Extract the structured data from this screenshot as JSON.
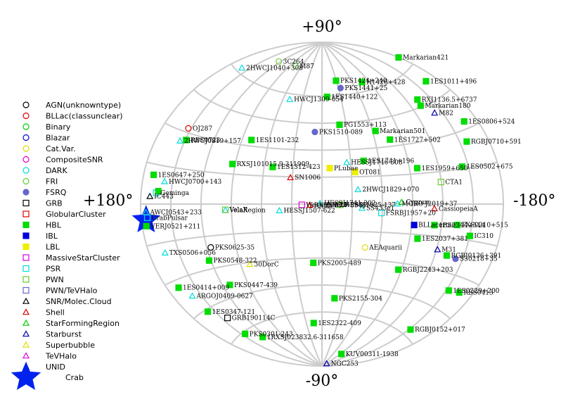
{
  "chart_data": {
    "type": "scatter",
    "projection": "aitoff-galactic",
    "axis_labels": {
      "top": "+90°",
      "bottom": "-90°",
      "left": "+180°",
      "right": "-180°"
    },
    "grid": true,
    "legend_position": "left",
    "classes": [
      {
        "name": "AGN(unknowntype)",
        "marker": "circle-open",
        "color": "#000000"
      },
      {
        "name": "BLLac(classunclear)",
        "marker": "circle-open",
        "color": "#dd0000"
      },
      {
        "name": "Binary",
        "marker": "circle-open",
        "color": "#00cc00"
      },
      {
        "name": "Blazar",
        "marker": "circle-open",
        "color": "#0000dd"
      },
      {
        "name": "Cat.Var.",
        "marker": "circle-open",
        "color": "#dddd00"
      },
      {
        "name": "CompositeSNR",
        "marker": "circle-open",
        "color": "#dd00dd"
      },
      {
        "name": "DARK",
        "marker": "circle-open",
        "color": "#00dddd"
      },
      {
        "name": "FRI",
        "marker": "circle-open",
        "color": "#66cc33"
      },
      {
        "name": "FSRQ",
        "marker": "circle-filled",
        "color": "#6666cc"
      },
      {
        "name": "GRB",
        "marker": "square-open",
        "color": "#000000"
      },
      {
        "name": "GlobularCluster",
        "marker": "square-open",
        "color": "#dd0000"
      },
      {
        "name": "HBL",
        "marker": "square-filled",
        "color": "#00dd00"
      },
      {
        "name": "IBL",
        "marker": "square-filled",
        "color": "#0000dd"
      },
      {
        "name": "LBL",
        "marker": "square-filled",
        "color": "#eeee00"
      },
      {
        "name": "MassiveStarCluster",
        "marker": "square-open",
        "color": "#dd00dd"
      },
      {
        "name": "PSR",
        "marker": "square-open",
        "color": "#00dddd"
      },
      {
        "name": "PWN",
        "marker": "square-open",
        "color": "#66cc33"
      },
      {
        "name": "PWN/TeVHalo",
        "marker": "square-open",
        "color": "#6666cc"
      },
      {
        "name": "SNR/Molec.Cloud",
        "marker": "triangle-open",
        "color": "#000000"
      },
      {
        "name": "Shell",
        "marker": "triangle-open",
        "color": "#dd0000"
      },
      {
        "name": "StarFormingRegion",
        "marker": "triangle-open",
        "color": "#00cc00"
      },
      {
        "name": "Starburst",
        "marker": "triangle-open",
        "color": "#0000aa"
      },
      {
        "name": "Superbubble",
        "marker": "triangle-open",
        "color": "#dddd00"
      },
      {
        "name": "TeVHalo",
        "marker": "triangle-open",
        "color": "#dd00dd"
      },
      {
        "name": "UNID",
        "marker": "triangle-open",
        "color": "#00dddd"
      },
      {
        "name": "Crab",
        "marker": "star",
        "color": "#0022ee"
      }
    ],
    "sources": [
      {
        "label": "Markarian421",
        "class": "HBL",
        "l": 179.8,
        "b": 65.0
      },
      {
        "label": "1ES1011+496",
        "class": "HBL",
        "l": 165.5,
        "b": 52.7
      },
      {
        "label": "H1426+428",
        "class": "HBL",
        "l": 77.5,
        "b": 64.9
      },
      {
        "label": "PKS1424+240",
        "class": "HBL",
        "l": 29.5,
        "b": 68.2
      },
      {
        "label": "PKS1441+25",
        "class": "FSRQ",
        "l": 34.0,
        "b": 64.0
      },
      {
        "label": "1ES1440+122",
        "class": "HBL",
        "l": 8.3,
        "b": 59.6
      },
      {
        "label": "HWCJ1309-054",
        "class": "UNID",
        "l": -50.0,
        "b": 57.0
      },
      {
        "label": "M87",
        "class": "FRI",
        "l": -76.3,
        "b": 74.5
      },
      {
        "label": "3C264",
        "class": "FRI",
        "l": -124.0,
        "b": 73.0
      },
      {
        "label": "2HWCJ1040+308",
        "class": "UNID",
        "l": -161.0,
        "b": 62.0
      },
      {
        "label": "RXJ1136.5+6737",
        "class": "HBL",
        "l": 134.0,
        "b": 48.5
      },
      {
        "label": "Markarian180",
        "class": "HBL",
        "l": 131.9,
        "b": 45.6
      },
      {
        "label": "1ES0806+524",
        "class": "HBL",
        "l": 166.2,
        "b": 32.9
      },
      {
        "label": "M82",
        "class": "Starburst",
        "l": 141.4,
        "b": 40.6
      },
      {
        "label": "PG1553+113",
        "class": "HBL",
        "l": 21.9,
        "b": 43.9
      },
      {
        "label": "Markarian501",
        "class": "HBL",
        "l": 63.6,
        "b": 38.9
      },
      {
        "label": "1ES1727+502",
        "class": "HBL",
        "l": 77.0,
        "b": 33.5
      },
      {
        "label": "PKS1510-089",
        "class": "FSRQ",
        "l": -8.5,
        "b": 40.1
      },
      {
        "label": "1ES1101-232",
        "class": "HBL",
        "l": -79.6,
        "b": 33.1
      },
      {
        "label": "OJ287",
        "class": "BLLac(classunclear)",
        "l": -153.0,
        "b": 31.7
      },
      {
        "label": "RBS0723",
        "class": "HBL",
        "l": -149.0,
        "b": 27.0
      },
      {
        "label": "2HWCJ0819+157",
        "class": "UNID",
        "l": -155.0,
        "b": 26.0
      },
      {
        "label": "RGBJ0710+591",
        "class": "HBL",
        "l": 157.4,
        "b": 25.4
      },
      {
        "label": "1ES0502+675",
        "class": "HBL",
        "l": 143.8,
        "b": 15.9
      },
      {
        "label": "1ES1959+650",
        "class": "HBL",
        "l": 98.0,
        "b": 17.7
      },
      {
        "label": "HESSJ1746-308",
        "class": "UNID",
        "l": 26.0,
        "b": 23.0
      },
      {
        "label": "1ES1741+196",
        "class": "HBL",
        "l": 43.8,
        "b": 23.5
      },
      {
        "label": "IC310",
        "class": "HBL",
        "l": 150.2,
        "b": -13.1
      },
      {
        "label": "OT081",
        "class": "LBL",
        "l": 34.0,
        "b": 17.6
      },
      {
        "label": "PLubae",
        "class": "LBL",
        "l": 8.0,
        "b": 20.0
      },
      {
        "label": "1ES1312-423",
        "class": "HBL",
        "l": -51.0,
        "b": 20.0
      },
      {
        "label": "RXSJ101015.9-311909",
        "class": "HBL",
        "l": -93.0,
        "b": 20.0
      },
      {
        "label": "PKS0447-439",
        "class": "HBL",
        "l": -111.5,
        "b": -39.1
      },
      {
        "label": "1ES0647+250",
        "class": "HBL",
        "l": -170.0,
        "b": 11.0
      },
      {
        "label": "HWCJ0700+143",
        "class": "UNID",
        "l": -158.0,
        "b": 9.0
      },
      {
        "label": "CTA1",
        "class": "PWN",
        "l": 119.6,
        "b": 10.2
      },
      {
        "label": "2HWCJ1829+070",
        "class": "UNID",
        "l": 36.0,
        "b": 8.0
      },
      {
        "label": "CassiopeiaA",
        "class": "Shell",
        "l": 111.7,
        "b": -2.1
      },
      {
        "label": "FSRBJ1957+20",
        "class": "PSR",
        "l": 59.2,
        "b": -4.7
      },
      {
        "label": "SS433e1",
        "class": "UNID",
        "l": 39.7,
        "b": -2.2
      },
      {
        "label": "HESSJ1507-622",
        "class": "UNID",
        "l": -42.3,
        "b": -3.5
      },
      {
        "label": "VelaRegion",
        "class": "UNID",
        "l": -96.0,
        "b": -3.0
      },
      {
        "label": "1ES2344+514",
        "class": "HBL",
        "l": 112.9,
        "b": -9.9
      },
      {
        "label": "BLLacertae",
        "class": "IBL",
        "l": 92.6,
        "b": -10.4
      },
      {
        "label": "TXS0210+515",
        "class": "HBL",
        "l": 135.8,
        "b": -9.1
      },
      {
        "label": "1ES2037+381",
        "class": "HBL",
        "l": 98.0,
        "b": -17.0
      },
      {
        "label": "AEAquarii",
        "class": "Cat.Var.",
        "l": 45.3,
        "b": -23.5
      },
      {
        "label": "RGBJ0136+391",
        "class": "HBL",
        "l": 132.4,
        "b": -22.9
      },
      {
        "label": "S30218+35",
        "class": "FSRQ",
        "l": 142.6,
        "b": -23.5
      },
      {
        "label": "RBS0413",
        "class": "HBL",
        "l": 165.2,
        "b": -35.6
      },
      {
        "label": "1ES0229+200",
        "class": "HBL",
        "l": 152.9,
        "b": -36.6
      },
      {
        "label": "RGBJ2243+203",
        "class": "HBL",
        "l": 86.6,
        "b": -33.4
      },
      {
        "label": "PKS2005-489",
        "class": "HBL",
        "l": 350.4,
        "b": -32.6
      },
      {
        "label": "PKS2155-304",
        "class": "HBL",
        "l": 17.7,
        "b": -52.2
      },
      {
        "label": "PKS0625-35",
        "class": "AGN(unknowntype)",
        "l": -116.0,
        "b": -20.3
      },
      {
        "label": "TXS0506+056",
        "class": "UNID",
        "l": -164.0,
        "b": -19.0
      },
      {
        "label": "PKS0548-322",
        "class": "HBL",
        "l": -122.0,
        "b": -26.1
      },
      {
        "label": "1ES0414+009",
        "class": "HBL",
        "l": -168.0,
        "b": -33.0
      },
      {
        "label": "ARGOJ0409-0627",
        "class": "UNID",
        "l": -160.0,
        "b": -38.0
      },
      {
        "label": "1ES0347-121",
        "class": "HBL",
        "l": -158.0,
        "b": -46.0
      },
      {
        "label": "GRB190114C",
        "class": "GRB",
        "l": -143.0,
        "b": -52.0
      },
      {
        "label": "PKS0301-243",
        "class": "HBL",
        "l": -145.0,
        "b": -61.0
      },
      {
        "label": "1RXSJ023832.6-311658",
        "class": "HBL",
        "l": -127.0,
        "b": -66.0
      },
      {
        "label": "1ES2322-409",
        "class": "HBL",
        "l": -16.0,
        "b": -66.0
      },
      {
        "label": "RGBJ0152+017",
        "class": "HBL",
        "l": 152.0,
        "b": -57.0
      },
      {
        "label": "KUV00311-1938",
        "class": "HBL",
        "l": 94.0,
        "b": -81.0
      },
      {
        "label": "NGC253",
        "class": "Starburst",
        "l": 97.0,
        "b": -88.0
      },
      {
        "label": "Crab",
        "class": "Crab",
        "l": -175.4,
        "b": -5.8
      },
      {
        "label": "VERJ0521+211",
        "class": "HBL",
        "l": -176.0,
        "b": -8.0
      },
      {
        "label": "AWCJ0543+233",
        "class": "UNID",
        "l": -175.0,
        "b": -3.0
      },
      {
        "label": "CrabPulsar",
        "class": "PSR",
        "l": -174.0,
        "b": -5.0
      },
      {
        "label": "Geminga",
        "class": "PSR",
        "l": -165.0,
        "b": 4.3
      },
      {
        "label": "RBS0723b",
        "class": "HBL",
        "l": -163.0,
        "b": 5.0
      },
      {
        "label": "M31",
        "class": "Starburst",
        "l": 121.0,
        "b": -21.0
      },
      {
        "label": "HESSJ1741-302",
        "class": "UNID",
        "l": 358.0,
        "b": 0.5
      },
      {
        "label": "RXJ1713.7-3946",
        "class": "Shell",
        "l": -12.0,
        "b": -0.5
      },
      {
        "label": "SN1006",
        "class": "Shell",
        "l": -32.0,
        "b": 14.6
      },
      {
        "label": "MGRO J2019+37",
        "class": "UNID",
        "l": 75.0,
        "b": 0.2
      },
      {
        "label": "Westerlund1",
        "class": "MassiveStarCluster",
        "l": -20.0,
        "b": -0.4
      },
      {
        "label": "HESSJ1825-137",
        "class": "PWN",
        "l": 18.0,
        "b": -0.4
      },
      {
        "label": "VelaX",
        "class": "PWN",
        "l": -96.0,
        "b": -2.8
      },
      {
        "label": "W28",
        "class": "SNR/Molec.Cloud",
        "l": 6.7,
        "b": -0.3
      },
      {
        "label": "IC443",
        "class": "SNR/Molec.Cloud",
        "l": -171.0,
        "b": 2.9
      },
      {
        "label": "Cygnus",
        "class": "StarFormingRegion",
        "l": 79.0,
        "b": 1.0
      },
      {
        "label": "30DorC",
        "class": "Superbubble",
        "l": -80.0,
        "b": -31.0
      }
    ]
  }
}
